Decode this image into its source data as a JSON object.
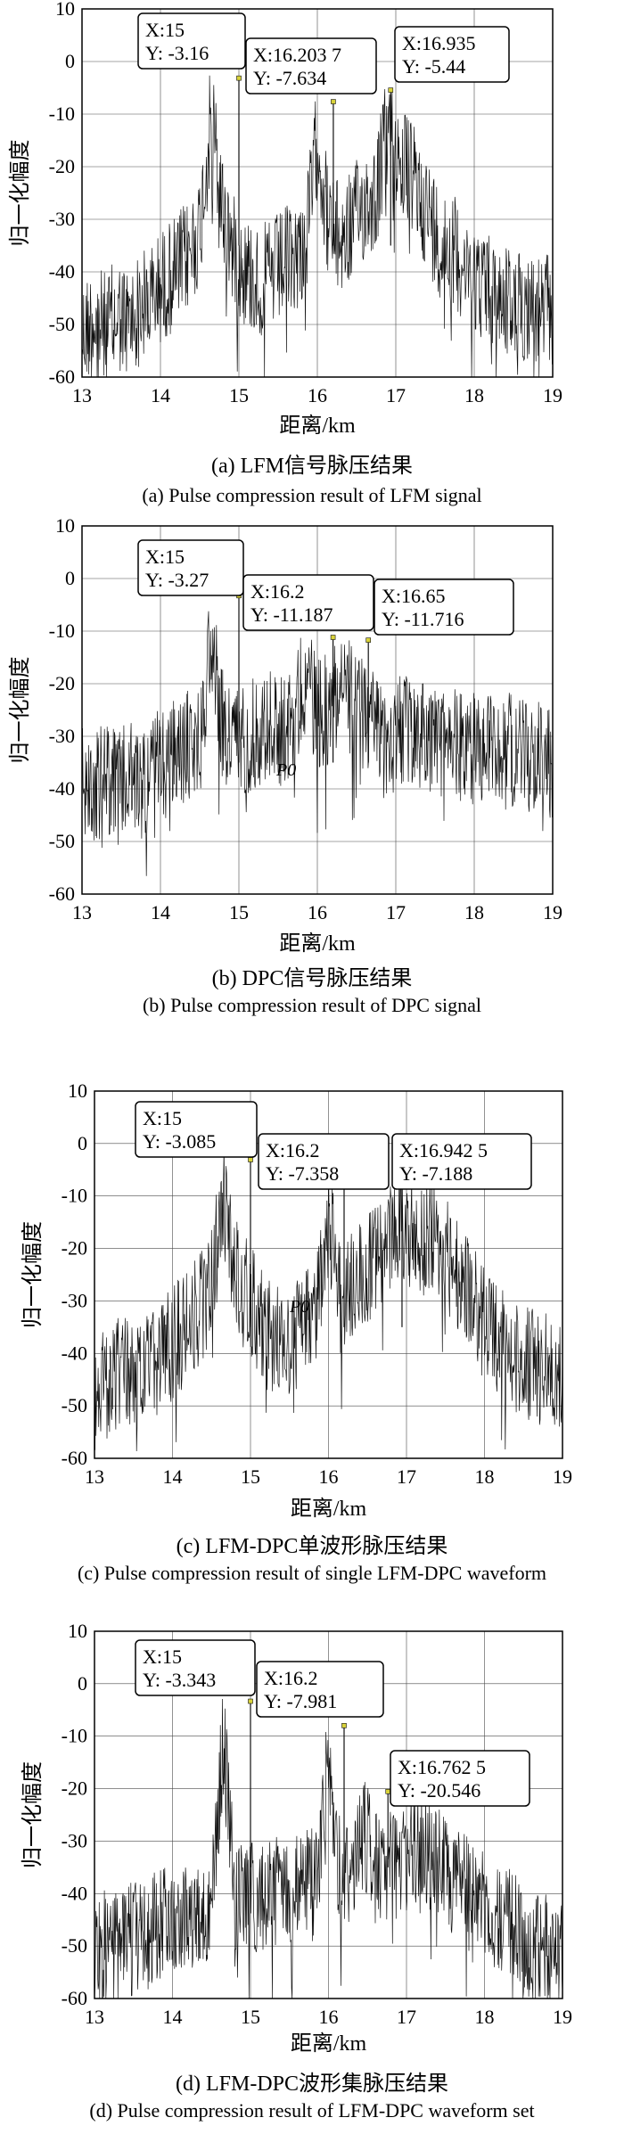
{
  "chart_data": [
    {
      "type": "line",
      "panel": "a",
      "xlabel": "距离/km",
      "ylabel": "归一化幅度",
      "xlim": [
        13,
        19
      ],
      "ylim": [
        -60,
        10
      ],
      "xticks": [
        "13",
        "14",
        "15",
        "16",
        "17",
        "18",
        "19"
      ],
      "yticks": [
        "10",
        "0",
        "-10",
        "-20",
        "-30",
        "-40",
        "-50",
        "-60"
      ],
      "grid": true,
      "caption_cn": "(a) LFM信号脉压结果",
      "caption_en": "(a) Pulse compression result of LFM signal",
      "annotations": [
        {
          "x": 15,
          "y": -3.16,
          "x_label": "X:15",
          "y_label": "Y: -3.16"
        },
        {
          "x": 16.2037,
          "y": -7.634,
          "x_label": "X:16.203 7",
          "y_label": "Y: -7.634"
        },
        {
          "x": 16.935,
          "y": -5.44,
          "x_label": "X:16.935",
          "y_label": "Y: -5.44"
        }
      ],
      "series": [
        {
          "values": [
            -45,
            -42,
            -44,
            -41,
            -43,
            -40,
            -38,
            -35,
            -33,
            -30,
            -25,
            -3.16,
            -22,
            -30,
            -33,
            -35,
            -34,
            -32,
            -30,
            -28,
            -7.634,
            -25,
            -27,
            -24,
            -20,
            -18,
            -5.44,
            -12,
            -15,
            -20,
            -25,
            -28,
            -30,
            -33,
            -35,
            -37,
            -38,
            -40,
            -39,
            -41,
            -40
          ]
        }
      ]
    },
    {
      "type": "line",
      "panel": "b",
      "xlabel": "距离/km",
      "ylabel": "归一化幅度",
      "xlim": [
        13,
        19
      ],
      "ylim": [
        -60,
        10
      ],
      "xticks": [
        "13",
        "14",
        "15",
        "16",
        "17",
        "18",
        "19"
      ],
      "yticks": [
        "10",
        "0",
        "-10",
        "-20",
        "-30",
        "-40",
        "-50",
        "-60"
      ],
      "grid": true,
      "caption_cn": "(b) DPC信号脉压结果",
      "caption_en": "(b) Pulse compression result of DPC signal",
      "annotations": [
        {
          "x": 15,
          "y": -3.27,
          "x_label": "X:15",
          "y_label": "Y: -3.27"
        },
        {
          "x": 16.2,
          "y": -11.187,
          "x_label": "X:16.2",
          "y_label": "Y: -11.187"
        },
        {
          "x": 16.65,
          "y": -11.716,
          "x_label": "X:16.65",
          "y_label": "Y: -11.716"
        }
      ],
      "series": [
        {
          "values": [
            -32,
            -34,
            -30,
            -33,
            -31,
            -32,
            -30,
            -28,
            -27,
            -25,
            -24,
            -3.27,
            -22,
            -24,
            -23,
            -22,
            -21,
            -22,
            -20,
            -11.187,
            -19,
            -18,
            -11.716,
            -17,
            -19,
            -20,
            -21,
            -22,
            -23,
            -22,
            -24,
            -25,
            -24,
            -26,
            -25,
            -24,
            -26,
            -25,
            -27,
            -26,
            -28
          ]
        }
      ],
      "marker_label": "P0"
    },
    {
      "type": "line",
      "panel": "c",
      "xlabel": "距离/km",
      "ylabel": "归一化幅度",
      "xlim": [
        13,
        19
      ],
      "ylim": [
        -60,
        10
      ],
      "xticks": [
        "13",
        "14",
        "15",
        "16",
        "17",
        "18",
        "19"
      ],
      "yticks": [
        "10",
        "0",
        "-10",
        "-20",
        "-30",
        "-40",
        "-50",
        "-60"
      ],
      "grid": true,
      "caption_cn": "(c) LFM-DPC单波形脉压结果",
      "caption_en": "(c) Pulse compression result of single LFM-DPC waveform",
      "annotations": [
        {
          "x": 15,
          "y": -3.085,
          "x_label": "X:15",
          "y_label": "Y: -3.085"
        },
        {
          "x": 16.2,
          "y": -7.358,
          "x_label": "X:16.2",
          "y_label": "Y: -7.358"
        },
        {
          "x": 16.9425,
          "y": -7.188,
          "x_label": "X:16.942 5",
          "y_label": "Y: -7.188"
        }
      ],
      "series": [
        {
          "values": [
            -38,
            -40,
            -37,
            -36,
            -38,
            -35,
            -33,
            -30,
            -28,
            -25,
            -20,
            -3.085,
            -18,
            -22,
            -26,
            -30,
            -32,
            -30,
            -28,
            -24,
            -7.358,
            -22,
            -20,
            -18,
            -15,
            -14,
            -7.188,
            -10,
            -12,
            -10,
            -14,
            -18,
            -22,
            -26,
            -30,
            -32,
            -34,
            -35,
            -36,
            -35,
            -37
          ]
        }
      ],
      "marker_label": "P0"
    },
    {
      "type": "line",
      "panel": "d",
      "xlabel": "距离/km",
      "ylabel": "归一化幅度",
      "xlim": [
        13,
        19
      ],
      "ylim": [
        -60,
        10
      ],
      "xticks": [
        "13",
        "14",
        "15",
        "16",
        "17",
        "18",
        "19"
      ],
      "yticks": [
        "10",
        "0",
        "-10",
        "-20",
        "-30",
        "-40",
        "-50",
        "-60"
      ],
      "grid": true,
      "caption_cn": "(d) LFM-DPC波形集脉压结果",
      "caption_en": "(d) Pulse compression result of LFM-DPC waveform set",
      "annotations": [
        {
          "x": 15,
          "y": -3.343,
          "x_label": "X:15",
          "y_label": "Y: -3.343"
        },
        {
          "x": 16.2,
          "y": -7.981,
          "x_label": "X:16.2",
          "y_label": "Y: -7.981"
        },
        {
          "x": 16.7625,
          "y": -20.546,
          "x_label": "X:16.762 5",
          "y_label": "Y: -20.546"
        }
      ],
      "series": [
        {
          "values": [
            -45,
            -43,
            -44,
            -42,
            -41,
            -40,
            -39,
            -38,
            -37,
            -36,
            -35,
            -3.343,
            -34,
            -35,
            -33,
            -34,
            -32,
            -33,
            -31,
            -30,
            -7.981,
            -30,
            -29,
            -20.546,
            -28,
            -29,
            -27,
            -26,
            -24,
            -27,
            -29,
            -31,
            -33,
            -35,
            -36,
            -38,
            -40,
            -42,
            -43,
            -44,
            -45
          ]
        }
      ]
    }
  ],
  "colors": {
    "line": "#111111",
    "grid": "#4a4a4a",
    "box_border": "#000000",
    "marker": "#d8d23a",
    "text": "#000000"
  }
}
